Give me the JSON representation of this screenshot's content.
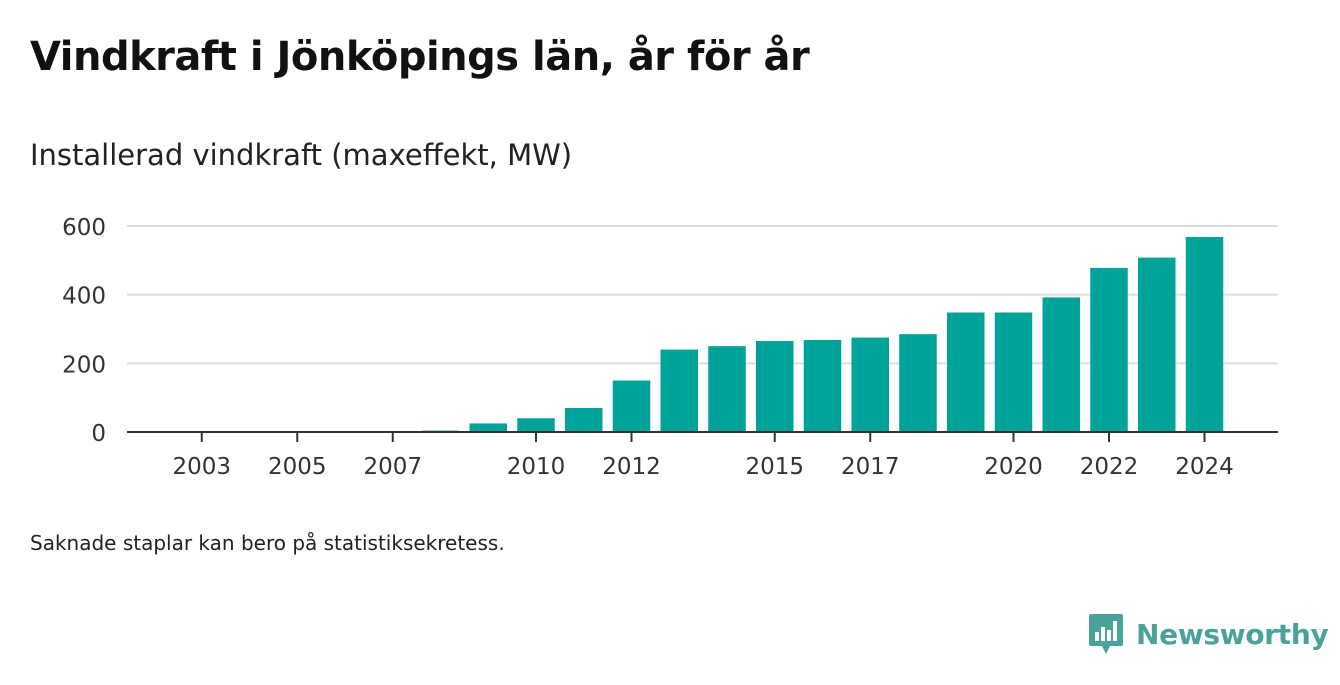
{
  "title": "Vindkraft i Jönköpings län, år för år",
  "subtitle": "Installerad vindkraft (maxeffekt, MW)",
  "note": "Saknade staplar kan bero på statistiksekretess.",
  "brand": {
    "name": "Newsworthy",
    "icon": "newsworthy-logo-icon"
  },
  "colors": {
    "bar": "#00a39a",
    "grid": "#dddddd",
    "axis": "#333333",
    "brand": "#4aa39b"
  },
  "chart_data": {
    "type": "bar",
    "categories": [
      "2002",
      "2003",
      "2004",
      "2005",
      "2006",
      "2007",
      "2008",
      "2009",
      "2010",
      "2011",
      "2012",
      "2013",
      "2014",
      "2015",
      "2016",
      "2017",
      "2018",
      "2019",
      "2020",
      "2021",
      "2022",
      "2023",
      "2024"
    ],
    "values": [
      0,
      0,
      0,
      0,
      0,
      0,
      4,
      25,
      40,
      70,
      150,
      240,
      250,
      265,
      268,
      275,
      285,
      348,
      348,
      392,
      478,
      508,
      568
    ],
    "x_tick_labels": [
      "2003",
      "2005",
      "2007",
      "2010",
      "2012",
      "2015",
      "2017",
      "2020",
      "2022",
      "2024"
    ],
    "y_ticks": [
      0,
      200,
      400,
      600
    ],
    "ylim": [
      0,
      600
    ],
    "xlabel": "",
    "ylabel": "",
    "grid": true
  }
}
